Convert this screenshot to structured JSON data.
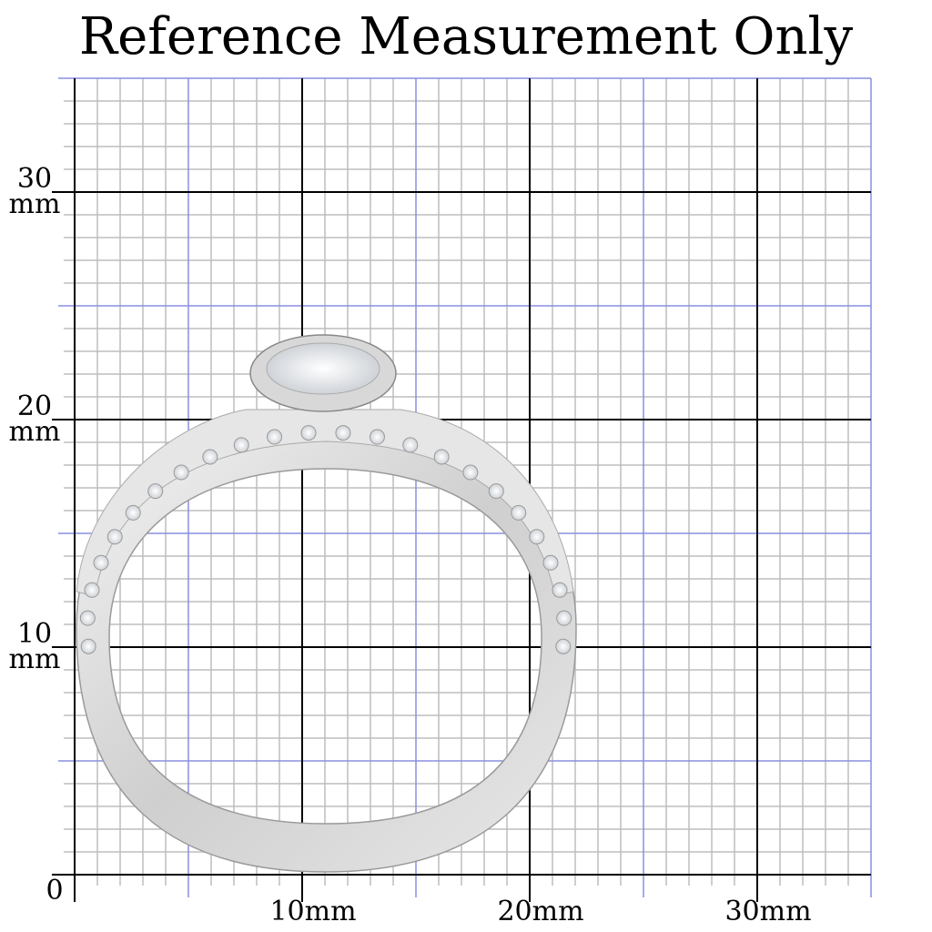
{
  "title": "Reference Measurement Only",
  "grid": {
    "unit": "mm",
    "x_range": [
      0,
      35
    ],
    "y_range": [
      0,
      35
    ],
    "minor_step": 1,
    "blue_step": 5,
    "major_step": 10,
    "colors": {
      "minor": "#bdbdbd",
      "blue": "#8a8fe0",
      "major": "#000000"
    }
  },
  "y_labels": [
    {
      "value": 30,
      "text": "30",
      "unit": "mm"
    },
    {
      "value": 20,
      "text": "20",
      "unit": "mm"
    },
    {
      "value": 10,
      "text": "10",
      "unit": "mm"
    },
    {
      "value": 0,
      "text": "0",
      "unit": ""
    }
  ],
  "x_labels": [
    {
      "value": 10,
      "text": "10mm"
    },
    {
      "value": 20,
      "text": "20mm"
    },
    {
      "value": 30,
      "text": "30mm"
    }
  ],
  "product": {
    "name": "ring",
    "colors": {
      "metal": "#d9d9d9",
      "shine": "#f7f7f7"
    }
  }
}
